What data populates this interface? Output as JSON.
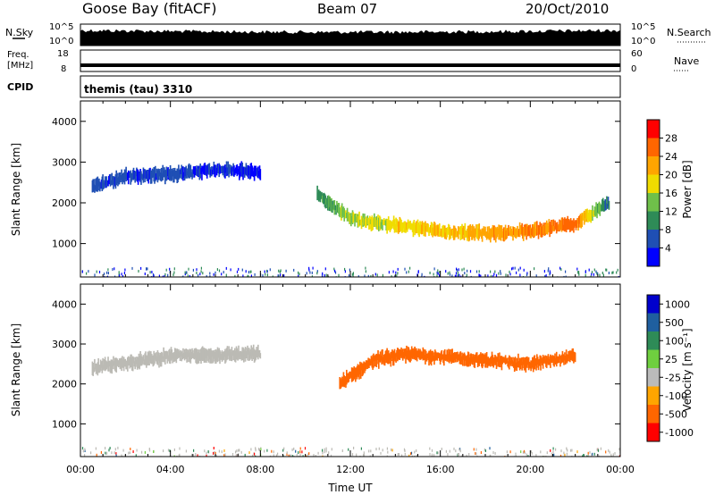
{
  "header": {
    "station": "Goose Bay (fitACF)",
    "beam": "Beam 07",
    "date": "20/Oct/2010"
  },
  "noise_panel": {
    "left_label": "N.Sky",
    "right_label": "N.Search",
    "left_ticks": [
      "10^5",
      "10^0"
    ],
    "right_ticks": [
      "10^5",
      "10^0"
    ]
  },
  "freq_panel": {
    "left_label_top": "Freq.",
    "left_label_bottom": "[MHz]",
    "right_label": "Nave",
    "left_ticks": [
      "18",
      "8"
    ],
    "right_ticks": [
      "60",
      "0"
    ]
  },
  "cpid_panel": {
    "label": "CPID",
    "text": "themis (tau) 3310"
  },
  "colors": {
    "power_scale": [
      "#0000ff",
      "#1f4fb4",
      "#2e8b57",
      "#6fc04a",
      "#f0dc00",
      "#ffa500",
      "#ff6600",
      "#ff0000"
    ],
    "velocity_scale": [
      "#0000cc",
      "#1f5f9f",
      "#2e8b57",
      "#6fcf3f",
      "#bbbbbb",
      "#ffa500",
      "#ff6600",
      "#ff0000"
    ],
    "ground_scatter": "#bbbab4"
  },
  "chart_data": [
    {
      "type": "heatmap",
      "title": "Power",
      "xlabel": "",
      "ylabel": "Slant Range [km]",
      "ylim": [
        180,
        4500
      ],
      "xlim_hours": [
        0,
        24
      ],
      "yticks": [
        "1000",
        "2000",
        "3000",
        "4000"
      ],
      "colorbar": {
        "label": "Power [dB]",
        "ticks": [
          "4",
          "8",
          "12",
          "16",
          "20",
          "24",
          "28"
        ]
      },
      "series": [
        {
          "x": [
            0.5,
            2,
            4,
            6,
            8
          ],
          "range_km": [
            2400,
            2650,
            2700,
            2820,
            2750
          ],
          "power_db": [
            6,
            5,
            5,
            4,
            3
          ]
        },
        {
          "x": [
            10.5,
            12,
            14,
            16,
            18,
            20,
            22,
            23.5
          ],
          "range_km": [
            2200,
            1600,
            1450,
            1300,
            1250,
            1300,
            1500,
            2000
          ],
          "power_db": [
            10,
            16,
            18,
            20,
            22,
            24,
            26,
            6
          ]
        }
      ]
    },
    {
      "type": "heatmap",
      "title": "Velocity",
      "xlabel": "Time UT",
      "ylabel": "Slant Range [km]",
      "ylim": [
        180,
        4500
      ],
      "xlim_hours": [
        0,
        24
      ],
      "yticks": [
        "1000",
        "2000",
        "3000",
        "4000"
      ],
      "xticks": [
        "00:00",
        "04:00",
        "08:00",
        "12:00",
        "16:00",
        "20:00",
        "00:00"
      ],
      "colorbar": {
        "label": "Velocity [m s⁻¹]",
        "ticks": [
          "1000",
          "500",
          "100",
          "25",
          "-25",
          "-100",
          "-500",
          "-1000"
        ]
      },
      "series": [
        {
          "x": [
            0.5,
            4,
            8
          ],
          "range_km": [
            2400,
            2700,
            2750
          ],
          "velocity_ms": [
            0,
            0,
            0
          ]
        },
        {
          "x": [
            11.5,
            13,
            14.5,
            20,
            22
          ],
          "range_km": [
            2000,
            2600,
            2750,
            2500,
            2700
          ],
          "velocity_ms": [
            -300,
            -400,
            -350,
            -200,
            -300
          ]
        }
      ]
    }
  ]
}
